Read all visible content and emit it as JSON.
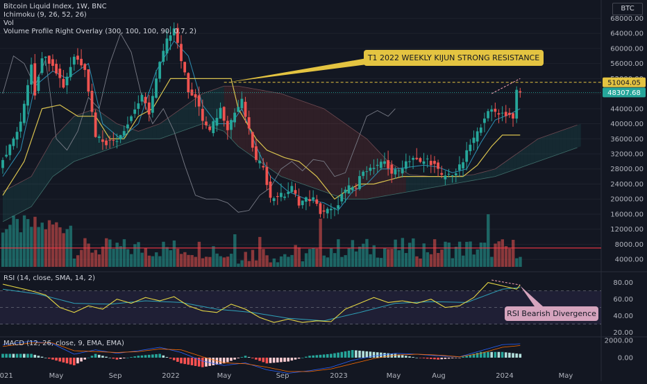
{
  "symbol": "BTC",
  "legend": {
    "title": "Bitcoin Liquid Index, 1W, BNC",
    "ichimoku": "Ichimoku (9, 26, 52, 26)",
    "vol": "Vol",
    "vp": "Volume Profile Right Overlay (300, 100, 100, 90, 0.7, 2)",
    "rsi": "RSI (14, close, SMA, 14, 2)",
    "macd": "MACD (12, 26, close, 9, EMA, EMA)"
  },
  "annotations": {
    "kijun": "T1 2022 WEEKLY KIJUN STRONG RESISTANCE",
    "divergence": "RSI Bearish Divergence"
  },
  "colors": {
    "up": "#26a69a",
    "down": "#ef5350",
    "kijun": "#d9c24f",
    "tenkan": "#2d8fb3",
    "lagging": "#787b86",
    "rsi": "#e7d844",
    "rsi_ma": "#2ea1b8",
    "macd_line": "#2962ff",
    "signal": "#ff6d00"
  },
  "chart_data": {
    "type": "candlestick",
    "timeframe": "1W",
    "x_ticks": [
      "2021",
      "May",
      "Sep",
      "2022",
      "May",
      "Sep",
      "2023",
      "May",
      "Aug",
      "2024",
      "May"
    ],
    "price_axis": {
      "ticks": [
        68000,
        64000,
        60000,
        56000,
        52000,
        48000,
        44000,
        40000,
        36000,
        32000,
        28000,
        24000,
        20000,
        16000,
        12000,
        8000,
        4000
      ],
      "range": [
        2000,
        69000
      ],
      "markers": [
        {
          "label": "51004.05",
          "value": 51004.05,
          "color": "#e4c441"
        },
        {
          "label": "48307.68",
          "value": 48307.68,
          "color": "#26a69a"
        }
      ]
    },
    "rsi_axis": {
      "ticks": [
        80,
        60,
        40,
        20
      ],
      "range": [
        18,
        88
      ],
      "band": [
        30,
        70
      ]
    },
    "macd_axis": {
      "ticks": [
        2000,
        0
      ]
    },
    "anchors": [
      [
        0,
        29000
      ],
      [
        3,
        34000
      ],
      [
        6,
        40000
      ],
      [
        9,
        56000
      ],
      [
        10,
        48000
      ],
      [
        12,
        58000
      ],
      [
        15,
        56000
      ],
      [
        18,
        50000
      ],
      [
        21,
        58000
      ],
      [
        24,
        55000
      ],
      [
        27,
        37000
      ],
      [
        30,
        35000
      ],
      [
        33,
        36000
      ],
      [
        36,
        40000
      ],
      [
        38,
        44000
      ],
      [
        40,
        47000
      ],
      [
        42,
        43000
      ],
      [
        45,
        56000
      ],
      [
        47,
        62000
      ],
      [
        49,
        66000
      ],
      [
        51,
        57000
      ],
      [
        53,
        49000
      ],
      [
        55,
        47000
      ],
      [
        57,
        41000
      ],
      [
        59,
        38000
      ],
      [
        62,
        44000
      ],
      [
        64,
        39000
      ],
      [
        66,
        43000
      ],
      [
        68,
        46000
      ],
      [
        70,
        38000
      ],
      [
        72,
        30000
      ],
      [
        74,
        29000
      ],
      [
        76,
        20000
      ],
      [
        78,
        21000
      ],
      [
        80,
        21000
      ],
      [
        82,
        23000
      ],
      [
        84,
        19000
      ],
      [
        86,
        20000
      ],
      [
        88,
        20000
      ],
      [
        90,
        16500
      ],
      [
        92,
        17000
      ],
      [
        94,
        17000
      ],
      [
        96,
        21000
      ],
      [
        98,
        23000
      ],
      [
        100,
        23000
      ],
      [
        102,
        28000
      ],
      [
        104,
        28000
      ],
      [
        106,
        28500
      ],
      [
        108,
        30000
      ],
      [
        110,
        27000
      ],
      [
        112,
        27500
      ],
      [
        114,
        30000
      ],
      [
        116,
        31000
      ],
      [
        118,
        29500
      ],
      [
        120,
        30500
      ],
      [
        122,
        29000
      ],
      [
        124,
        26000
      ],
      [
        126,
        26500
      ],
      [
        128,
        27000
      ],
      [
        130,
        30000
      ],
      [
        132,
        34500
      ],
      [
        134,
        37500
      ],
      [
        136,
        42000
      ],
      [
        138,
        43500
      ],
      [
        140,
        43000
      ],
      [
        142,
        42500
      ],
      [
        144,
        42000
      ],
      [
        145,
        48300
      ]
    ],
    "kijun": [
      [
        0,
        21000
      ],
      [
        6,
        30000
      ],
      [
        11,
        44000
      ],
      [
        16,
        45000
      ],
      [
        21,
        42000
      ],
      [
        26,
        42000
      ],
      [
        30,
        36000
      ],
      [
        34,
        36000
      ],
      [
        38,
        42000
      ],
      [
        42,
        44000
      ],
      [
        47,
        52000
      ],
      [
        52,
        52000
      ],
      [
        57,
        52000
      ],
      [
        61,
        52000
      ],
      [
        64,
        52000
      ],
      [
        66,
        44000
      ],
      [
        71,
        36000
      ],
      [
        74,
        33000
      ],
      [
        79,
        31000
      ],
      [
        83,
        30000
      ],
      [
        88,
        26000
      ],
      [
        93,
        20000
      ],
      [
        96,
        22000
      ],
      [
        100,
        24000
      ],
      [
        104,
        24000
      ],
      [
        108,
        25000
      ],
      [
        112,
        26000
      ],
      [
        116,
        26000
      ],
      [
        120,
        26000
      ],
      [
        125,
        26000
      ],
      [
        129,
        26000
      ],
      [
        133,
        29000
      ],
      [
        137,
        34000
      ],
      [
        140,
        37000
      ],
      [
        145,
        37000
      ]
    ],
    "tenkan": [
      [
        0,
        26000
      ],
      [
        5,
        33000
      ],
      [
        9,
        50000
      ],
      [
        14,
        54000
      ],
      [
        18,
        52000
      ],
      [
        24,
        56000
      ],
      [
        28,
        40000
      ],
      [
        33,
        36000
      ],
      [
        38,
        40000
      ],
      [
        43,
        54000
      ],
      [
        48,
        62000
      ],
      [
        52,
        58000
      ],
      [
        56,
        45000
      ],
      [
        60,
        40000
      ],
      [
        64,
        40000
      ],
      [
        67,
        44000
      ],
      [
        71,
        34000
      ],
      [
        75,
        26000
      ],
      [
        80,
        22000
      ],
      [
        85,
        20000
      ],
      [
        90,
        19000
      ],
      [
        94,
        17000
      ],
      [
        98,
        22000
      ],
      [
        102,
        24000
      ],
      [
        106,
        28000
      ],
      [
        110,
        28000
      ],
      [
        114,
        28500
      ],
      [
        118,
        29000
      ],
      [
        122,
        28500
      ],
      [
        126,
        27000
      ],
      [
        130,
        28000
      ],
      [
        134,
        35000
      ],
      [
        138,
        41000
      ],
      [
        142,
        42500
      ],
      [
        145,
        44000
      ]
    ],
    "lagging": [
      [
        0,
        48000
      ],
      [
        3,
        58000
      ],
      [
        6,
        56000
      ],
      [
        9,
        50000
      ],
      [
        12,
        57000
      ],
      [
        15,
        36000
      ],
      [
        18,
        33000
      ],
      [
        21,
        38000
      ],
      [
        24,
        47000
      ],
      [
        27,
        44000
      ],
      [
        30,
        56000
      ],
      [
        33,
        64000
      ],
      [
        36,
        59000
      ],
      [
        39,
        47000
      ],
      [
        42,
        40000
      ],
      [
        45,
        44000
      ],
      [
        48,
        38000
      ],
      [
        51,
        29000
      ],
      [
        54,
        21000
      ],
      [
        57,
        20000
      ],
      [
        60,
        20000
      ],
      [
        63,
        19000
      ],
      [
        66,
        16500
      ],
      [
        69,
        17000
      ],
      [
        72,
        21000
      ],
      [
        75,
        23000
      ],
      [
        78,
        28000
      ],
      [
        81,
        30000
      ],
      [
        84,
        27500
      ],
      [
        87,
        30500
      ],
      [
        90,
        30000
      ],
      [
        93,
        26000
      ],
      [
        96,
        27000
      ],
      [
        99,
        34500
      ],
      [
        102,
        42000
      ],
      [
        105,
        43500
      ],
      [
        108,
        42000
      ],
      [
        110,
        44000
      ]
    ],
    "cloud_top": [
      [
        0,
        22000
      ],
      [
        8,
        26000
      ],
      [
        14,
        36000
      ],
      [
        20,
        42000
      ],
      [
        26,
        44000
      ],
      [
        32,
        40000
      ],
      [
        38,
        38000
      ],
      [
        44,
        40000
      ],
      [
        50,
        44000
      ],
      [
        56,
        48000
      ],
      [
        62,
        50000
      ],
      [
        66,
        50000
      ],
      [
        72,
        49000
      ],
      [
        78,
        48000
      ],
      [
        84,
        46000
      ],
      [
        90,
        44000
      ],
      [
        96,
        40000
      ],
      [
        102,
        36000
      ],
      [
        108,
        30000
      ],
      [
        114,
        26500
      ],
      [
        120,
        26000
      ],
      [
        126,
        26000
      ],
      [
        132,
        26500
      ],
      [
        138,
        28000
      ],
      [
        144,
        32000
      ],
      [
        150,
        36000
      ],
      [
        156,
        38000
      ],
      [
        162,
        40000
      ]
    ],
    "cloud_bottom": [
      [
        0,
        14000
      ],
      [
        8,
        18000
      ],
      [
        14,
        26000
      ],
      [
        20,
        30000
      ],
      [
        26,
        32000
      ],
      [
        32,
        34000
      ],
      [
        38,
        36000
      ],
      [
        44,
        36000
      ],
      [
        50,
        38000
      ],
      [
        56,
        40000
      ],
      [
        62,
        38000
      ],
      [
        66,
        34000
      ],
      [
        72,
        30000
      ],
      [
        78,
        26000
      ],
      [
        84,
        24000
      ],
      [
        90,
        22000
      ],
      [
        96,
        20000
      ],
      [
        102,
        20000
      ],
      [
        108,
        21000
      ],
      [
        114,
        22000
      ],
      [
        120,
        23000
      ],
      [
        126,
        24000
      ],
      [
        132,
        25000
      ],
      [
        138,
        26000
      ],
      [
        144,
        28000
      ],
      [
        150,
        30000
      ],
      [
        156,
        32000
      ],
      [
        162,
        34000
      ]
    ],
    "volume_line": 7000,
    "rsi": [
      [
        0,
        78
      ],
      [
        4,
        74
      ],
      [
        8,
        70
      ],
      [
        12,
        65
      ],
      [
        16,
        50
      ],
      [
        20,
        44
      ],
      [
        24,
        52
      ],
      [
        28,
        48
      ],
      [
        32,
        60
      ],
      [
        36,
        55
      ],
      [
        40,
        62
      ],
      [
        44,
        58
      ],
      [
        48,
        63
      ],
      [
        52,
        52
      ],
      [
        56,
        46
      ],
      [
        60,
        44
      ],
      [
        64,
        54
      ],
      [
        68,
        48
      ],
      [
        72,
        38
      ],
      [
        76,
        32
      ],
      [
        80,
        36
      ],
      [
        84,
        32
      ],
      [
        88,
        34
      ],
      [
        92,
        33
      ],
      [
        96,
        48
      ],
      [
        100,
        55
      ],
      [
        104,
        62
      ],
      [
        108,
        56
      ],
      [
        112,
        58
      ],
      [
        116,
        55
      ],
      [
        120,
        60
      ],
      [
        124,
        50
      ],
      [
        128,
        52
      ],
      [
        132,
        62
      ],
      [
        136,
        80
      ],
      [
        140,
        76
      ],
      [
        144,
        72
      ],
      [
        145,
        77
      ]
    ],
    "rsi_ma": [
      [
        0,
        72
      ],
      [
        10,
        66
      ],
      [
        20,
        55
      ],
      [
        30,
        54
      ],
      [
        40,
        58
      ],
      [
        50,
        56
      ],
      [
        60,
        48
      ],
      [
        70,
        44
      ],
      [
        80,
        37
      ],
      [
        90,
        34
      ],
      [
        100,
        44
      ],
      [
        110,
        55
      ],
      [
        120,
        57
      ],
      [
        130,
        56
      ],
      [
        140,
        72
      ],
      [
        145,
        74
      ]
    ],
    "macd_line": [
      [
        0,
        1.5
      ],
      [
        8,
        1.9
      ],
      [
        14,
        1.6
      ],
      [
        20,
        0.4
      ],
      [
        26,
        0.9
      ],
      [
        32,
        0.5
      ],
      [
        38,
        0.8
      ],
      [
        44,
        1.2
      ],
      [
        50,
        0.6
      ],
      [
        56,
        -0.4
      ],
      [
        62,
        -0.9
      ],
      [
        68,
        -0.6
      ],
      [
        74,
        -1.4
      ],
      [
        80,
        -1.8
      ],
      [
        86,
        -1.5
      ],
      [
        92,
        -1.1
      ],
      [
        98,
        -0.3
      ],
      [
        104,
        0.2
      ],
      [
        110,
        0.5
      ],
      [
        116,
        0.4
      ],
      [
        122,
        0.2
      ],
      [
        128,
        0.1
      ],
      [
        134,
        0.8
      ],
      [
        140,
        1.5
      ],
      [
        145,
        1.6
      ]
    ],
    "signal_line": [
      [
        0,
        1.3
      ],
      [
        8,
        1.7
      ],
      [
        14,
        1.7
      ],
      [
        20,
        0.8
      ],
      [
        26,
        0.7
      ],
      [
        32,
        0.6
      ],
      [
        38,
        0.7
      ],
      [
        44,
        1.0
      ],
      [
        50,
        0.9
      ],
      [
        56,
        0.1
      ],
      [
        62,
        -0.6
      ],
      [
        68,
        -0.7
      ],
      [
        74,
        -1.1
      ],
      [
        80,
        -1.6
      ],
      [
        86,
        -1.6
      ],
      [
        92,
        -1.3
      ],
      [
        98,
        -0.7
      ],
      [
        104,
        -0.1
      ],
      [
        110,
        0.3
      ],
      [
        116,
        0.4
      ],
      [
        122,
        0.3
      ],
      [
        128,
        0.1
      ],
      [
        134,
        0.5
      ],
      [
        140,
        1.2
      ],
      [
        145,
        1.4
      ]
    ]
  }
}
